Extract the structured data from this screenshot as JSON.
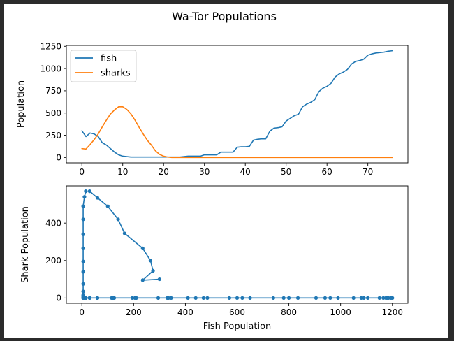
{
  "figure": {
    "title": "Wa-Tor Populations"
  },
  "colors": {
    "fish": "#1f77b4",
    "sharks": "#ff7f0e",
    "phase": "#1f77b4"
  },
  "chart_data": [
    {
      "type": "line",
      "title": "",
      "xlabel": "",
      "ylabel": "Population",
      "xlim": [
        -3.8,
        79.8
      ],
      "ylim": [
        -60,
        1260
      ],
      "xticks": [
        0,
        10,
        20,
        30,
        40,
        50,
        60,
        70
      ],
      "yticks": [
        0,
        250,
        500,
        750,
        1000,
        1250
      ],
      "legend": "upper-left",
      "grid": false,
      "series": [
        {
          "name": "fish",
          "color_key": "fish",
          "x": [
            0,
            1,
            2,
            3,
            4,
            5,
            6,
            7,
            8,
            9,
            10,
            11,
            12,
            13,
            14,
            15,
            16,
            17,
            18,
            19,
            20,
            21,
            22,
            23,
            24,
            25,
            26,
            27,
            28,
            29,
            30,
            31,
            32,
            33,
            34,
            35,
            36,
            37,
            38,
            39,
            40,
            41,
            42,
            43,
            44,
            45,
            46,
            47,
            48,
            49,
            50,
            51,
            52,
            53,
            54,
            55,
            56,
            57,
            58,
            59,
            60,
            61,
            62,
            63,
            64,
            65,
            66,
            67,
            68,
            69,
            70,
            71,
            72,
            73,
            74,
            75,
            76
          ],
          "values": [
            300,
            235,
            275,
            265,
            235,
            165,
            140,
            100,
            60,
            30,
            15,
            10,
            5,
            5,
            5,
            5,
            5,
            5,
            5,
            5,
            5,
            5,
            5,
            5,
            5,
            10,
            15,
            15,
            15,
            15,
            30,
            30,
            30,
            30,
            60,
            60,
            60,
            60,
            115,
            120,
            120,
            125,
            195,
            205,
            210,
            210,
            295,
            330,
            335,
            345,
            410,
            440,
            470,
            485,
            570,
            600,
            620,
            650,
            740,
            780,
            800,
            835,
            905,
            940,
            960,
            990,
            1050,
            1080,
            1090,
            1105,
            1150,
            1165,
            1175,
            1180,
            1185,
            1195,
            1200
          ]
        },
        {
          "name": "sharks",
          "color_key": "sharks",
          "x": [
            0,
            1,
            2,
            3,
            4,
            5,
            6,
            7,
            8,
            9,
            10,
            11,
            12,
            13,
            14,
            15,
            16,
            17,
            18,
            19,
            20,
            21,
            22,
            23,
            24,
            25,
            26,
            27,
            28,
            29,
            30,
            31,
            32,
            33,
            34,
            35,
            36,
            37,
            38,
            39,
            40,
            41,
            42,
            43,
            44,
            45,
            46,
            47,
            48,
            49,
            50,
            51,
            52,
            53,
            54,
            55,
            56,
            57,
            58,
            59,
            60,
            61,
            62,
            63,
            64,
            65,
            66,
            67,
            68,
            69,
            70,
            71,
            72,
            73,
            74,
            75,
            76
          ],
          "values": [
            100,
            95,
            145,
            200,
            265,
            345,
            420,
            490,
            535,
            570,
            570,
            540,
            490,
            420,
            340,
            265,
            195,
            140,
            75,
            35,
            15,
            5,
            0,
            0,
            0,
            0,
            0,
            0,
            0,
            0,
            0,
            0,
            0,
            0,
            0,
            0,
            0,
            0,
            0,
            0,
            0,
            0,
            0,
            0,
            0,
            0,
            0,
            0,
            0,
            0,
            0,
            0,
            0,
            0,
            0,
            0,
            0,
            0,
            0,
            0,
            0,
            0,
            0,
            0,
            0,
            0,
            0,
            0,
            0,
            0,
            0,
            0,
            0,
            0,
            0,
            0,
            0
          ]
        }
      ]
    },
    {
      "type": "line",
      "title": "",
      "xlabel": "Fish Population",
      "ylabel": "Shark Population",
      "xlim": [
        -60,
        1260
      ],
      "ylim": [
        -28.5,
        598.5
      ],
      "xticks": [
        0,
        200,
        400,
        600,
        800,
        1000,
        1200
      ],
      "yticks": [
        0,
        200,
        400
      ],
      "grid": false,
      "markers": true,
      "series": [
        {
          "color_key": "phase",
          "x": [
            300,
            235,
            275,
            265,
            235,
            165,
            140,
            100,
            60,
            30,
            15,
            10,
            5,
            5,
            5,
            5,
            5,
            5,
            5,
            5,
            5,
            5,
            5,
            5,
            5,
            10,
            15,
            15,
            15,
            15,
            30,
            30,
            30,
            30,
            60,
            60,
            60,
            60,
            115,
            120,
            120,
            125,
            195,
            205,
            210,
            210,
            295,
            330,
            335,
            345,
            410,
            440,
            470,
            485,
            570,
            600,
            620,
            650,
            740,
            780,
            800,
            835,
            905,
            940,
            960,
            990,
            1050,
            1080,
            1090,
            1105,
            1150,
            1165,
            1175,
            1180,
            1185,
            1195,
            1200
          ],
          "y": [
            100,
            95,
            145,
            200,
            265,
            345,
            420,
            490,
            535,
            570,
            570,
            540,
            490,
            420,
            340,
            265,
            195,
            140,
            75,
            35,
            15,
            5,
            0,
            0,
            0,
            0,
            0,
            0,
            0,
            0,
            0,
            0,
            0,
            0,
            0,
            0,
            0,
            0,
            0,
            0,
            0,
            0,
            0,
            0,
            0,
            0,
            0,
            0,
            0,
            0,
            0,
            0,
            0,
            0,
            0,
            0,
            0,
            0,
            0,
            0,
            0,
            0,
            0,
            0,
            0,
            0,
            0,
            0,
            0,
            0,
            0,
            0,
            0,
            0,
            0,
            0,
            0
          ]
        }
      ]
    }
  ]
}
